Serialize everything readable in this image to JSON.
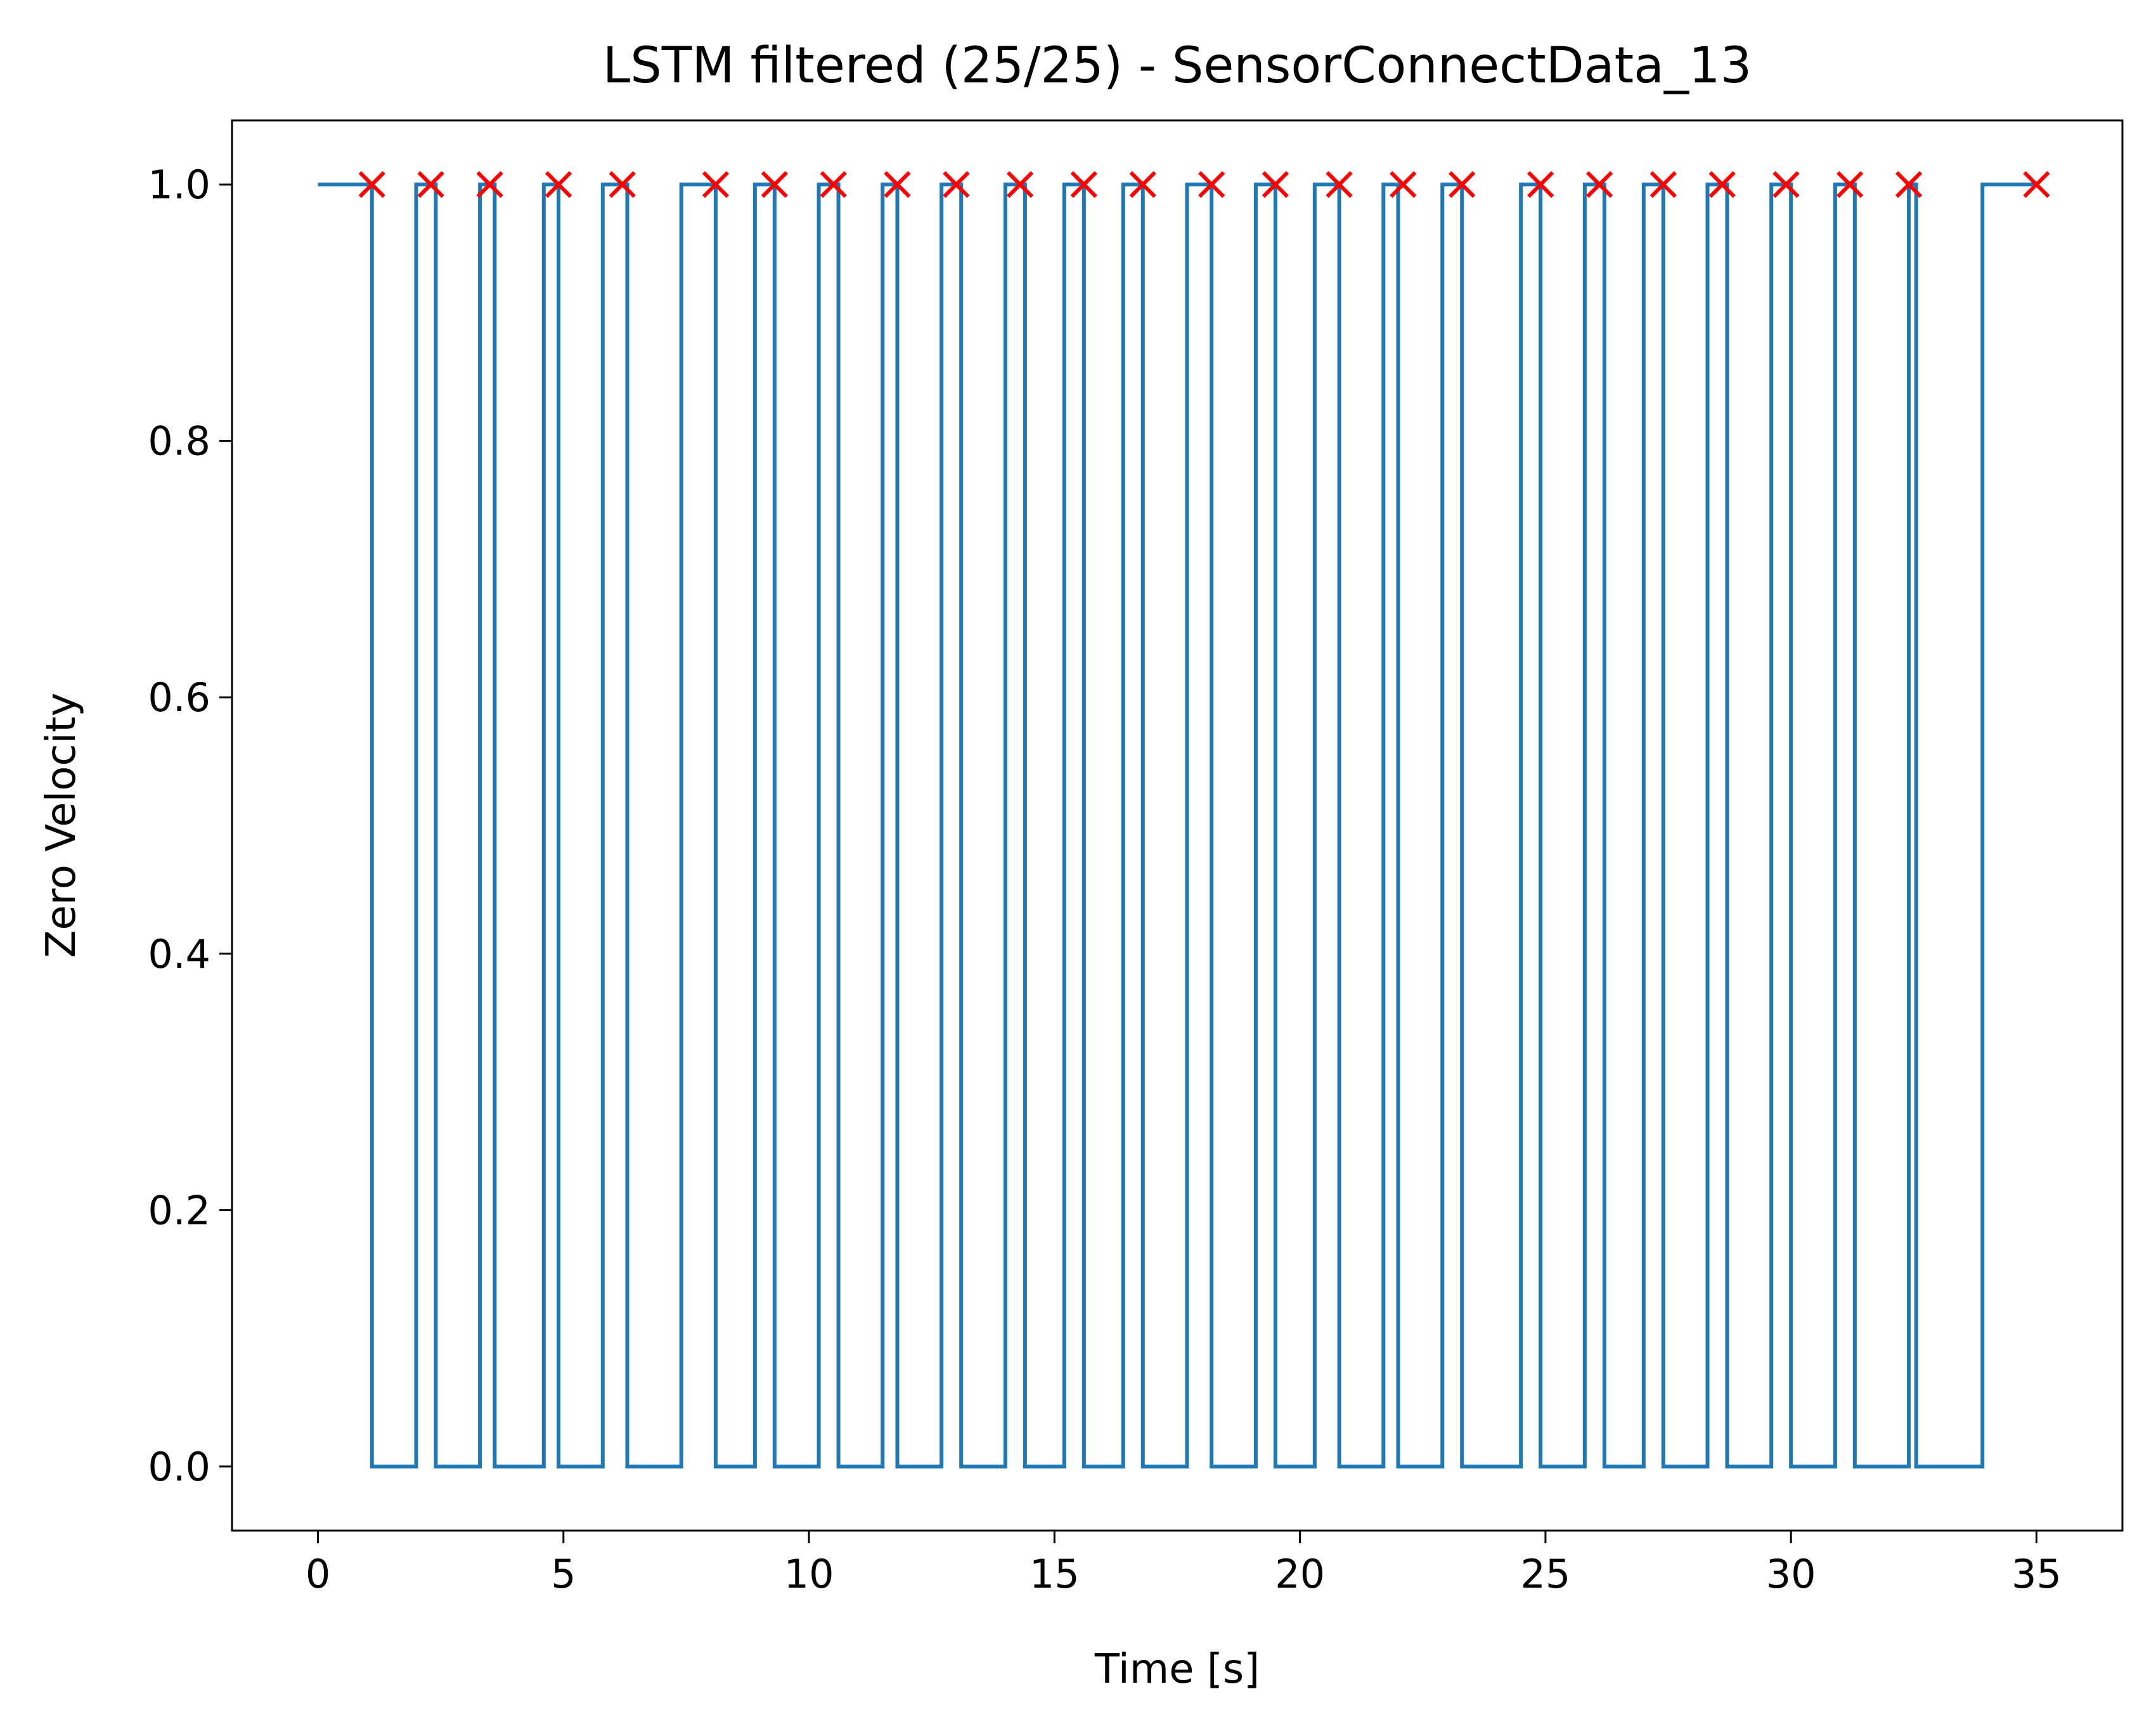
{
  "chart_data": {
    "type": "line",
    "title": "LSTM filtered (25/25) - SensorConnectData_13",
    "xlabel": "Time [s]",
    "ylabel": "Zero Velocity",
    "xlim": [
      -1.75,
      36.75
    ],
    "ylim": [
      -0.05,
      1.05
    ],
    "xticks": [
      0,
      5,
      10,
      15,
      20,
      25,
      30,
      35
    ],
    "xtick_labels": [
      "0",
      "5",
      "10",
      "15",
      "20",
      "25",
      "30",
      "35"
    ],
    "yticks": [
      0.0,
      0.2,
      0.4,
      0.6,
      0.8,
      1.0
    ],
    "ytick_labels": [
      "0.0",
      "0.2",
      "0.4",
      "0.6",
      "0.8",
      "1.0"
    ],
    "grid": false,
    "legend": "none",
    "series": [
      {
        "style": "step",
        "color": "#1f77b4",
        "x_start": 0.0,
        "x_end": 35.0,
        "initial_value": 1,
        "final_value": 1,
        "low_intervals": [
          [
            1.1,
            2.0
          ],
          [
            2.4,
            3.3
          ],
          [
            3.6,
            4.6
          ],
          [
            4.9,
            5.8
          ],
          [
            6.3,
            7.4
          ],
          [
            8.1,
            8.9
          ],
          [
            9.3,
            10.2
          ],
          [
            10.6,
            11.5
          ],
          [
            11.8,
            12.7
          ],
          [
            13.1,
            14.0
          ],
          [
            14.4,
            15.2
          ],
          [
            15.6,
            16.4
          ],
          [
            16.8,
            17.7
          ],
          [
            18.2,
            19.1
          ],
          [
            19.5,
            20.3
          ],
          [
            20.8,
            21.7
          ],
          [
            22.0,
            22.9
          ],
          [
            23.3,
            24.5
          ],
          [
            24.9,
            25.8
          ],
          [
            26.2,
            27.0
          ],
          [
            27.4,
            28.3
          ],
          [
            28.7,
            29.6
          ],
          [
            30.0,
            30.9
          ],
          [
            31.3,
            32.4
          ],
          [
            32.55,
            33.9
          ]
        ]
      },
      {
        "style": "markers",
        "marker": "x",
        "color": "#ff0000",
        "x": [
          1.1,
          2.3,
          3.5,
          4.9,
          6.2,
          8.1,
          9.3,
          10.5,
          11.8,
          13.0,
          14.3,
          15.6,
          16.8,
          18.2,
          19.5,
          20.8,
          22.1,
          23.3,
          24.9,
          26.1,
          27.4,
          28.6,
          29.9,
          31.2,
          32.4,
          35.0
        ],
        "y": [
          1,
          1,
          1,
          1,
          1,
          1,
          1,
          1,
          1,
          1,
          1,
          1,
          1,
          1,
          1,
          1,
          1,
          1,
          1,
          1,
          1,
          1,
          1,
          1,
          1,
          1
        ]
      }
    ]
  }
}
